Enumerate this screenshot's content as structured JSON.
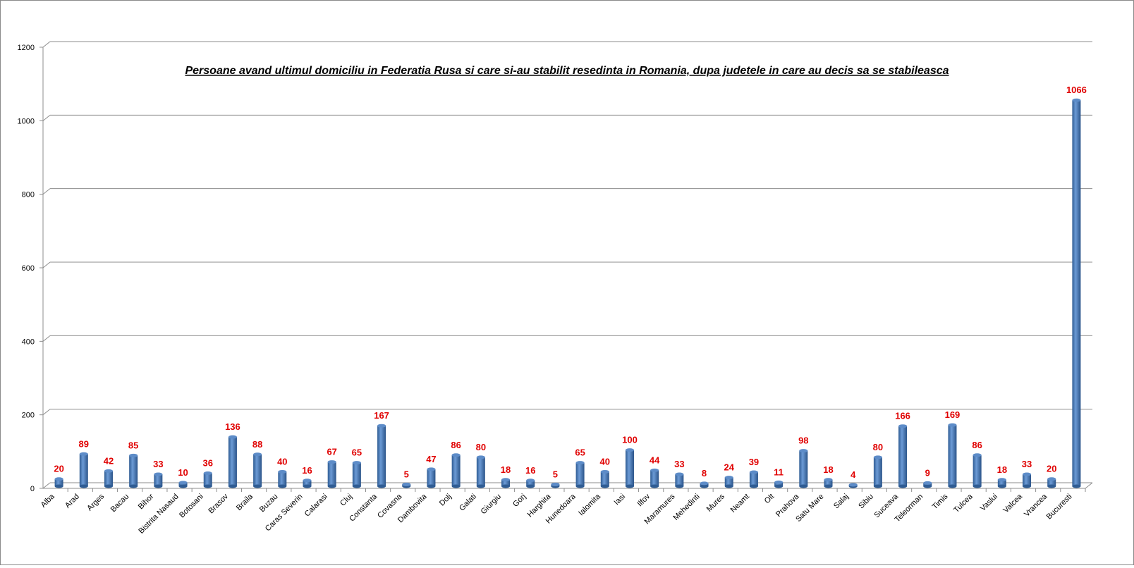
{
  "chart_data": {
    "type": "bar",
    "title": "Persoane avand ultimul domiciliu in Federatia Rusa si care si-au stabilit resedinta in Romania, dupa judetele in care au decis sa se stabileasca",
    "xlabel": "",
    "ylabel": "",
    "ylim": [
      0,
      1200
    ],
    "yticks": [
      0,
      200,
      400,
      600,
      800,
      1000,
      1200
    ],
    "grid": true,
    "legend": "none",
    "categories": [
      "Alba",
      "Arad",
      "Arges",
      "Bacau",
      "Bihor",
      "Bistrita Nasaud",
      "Botosani",
      "Brasov",
      "Braila",
      "Buzau",
      "Caras Severin",
      "Calarasi",
      "Cluj",
      "Constanta",
      "Covasna",
      "Dambovita",
      "Dolj",
      "Galati",
      "Giurgiu",
      "Gorj",
      "Harghita",
      "Hunedoara",
      "Ialomita",
      "Iasi",
      "Ilfov",
      "Maramures",
      "Mehedinti",
      "Mures",
      "Neamt",
      "Olt",
      "Prahova",
      "Satu Mare",
      "Salaj",
      "Sibiu",
      "Suceava",
      "Teleorman",
      "Timis",
      "Tulcea",
      "Vaslui",
      "Valcea",
      "Vrancea",
      "Bucuresti"
    ],
    "values": [
      20,
      89,
      42,
      85,
      33,
      10,
      36,
      136,
      88,
      40,
      16,
      67,
      65,
      167,
      5,
      47,
      86,
      80,
      18,
      16,
      5,
      65,
      40,
      100,
      44,
      33,
      8,
      24,
      39,
      11,
      98,
      18,
      4,
      80,
      166,
      9,
      169,
      86,
      18,
      33,
      20,
      1066
    ],
    "colors": {
      "bar": "#4a7ebb",
      "label": "#e00000"
    }
  }
}
